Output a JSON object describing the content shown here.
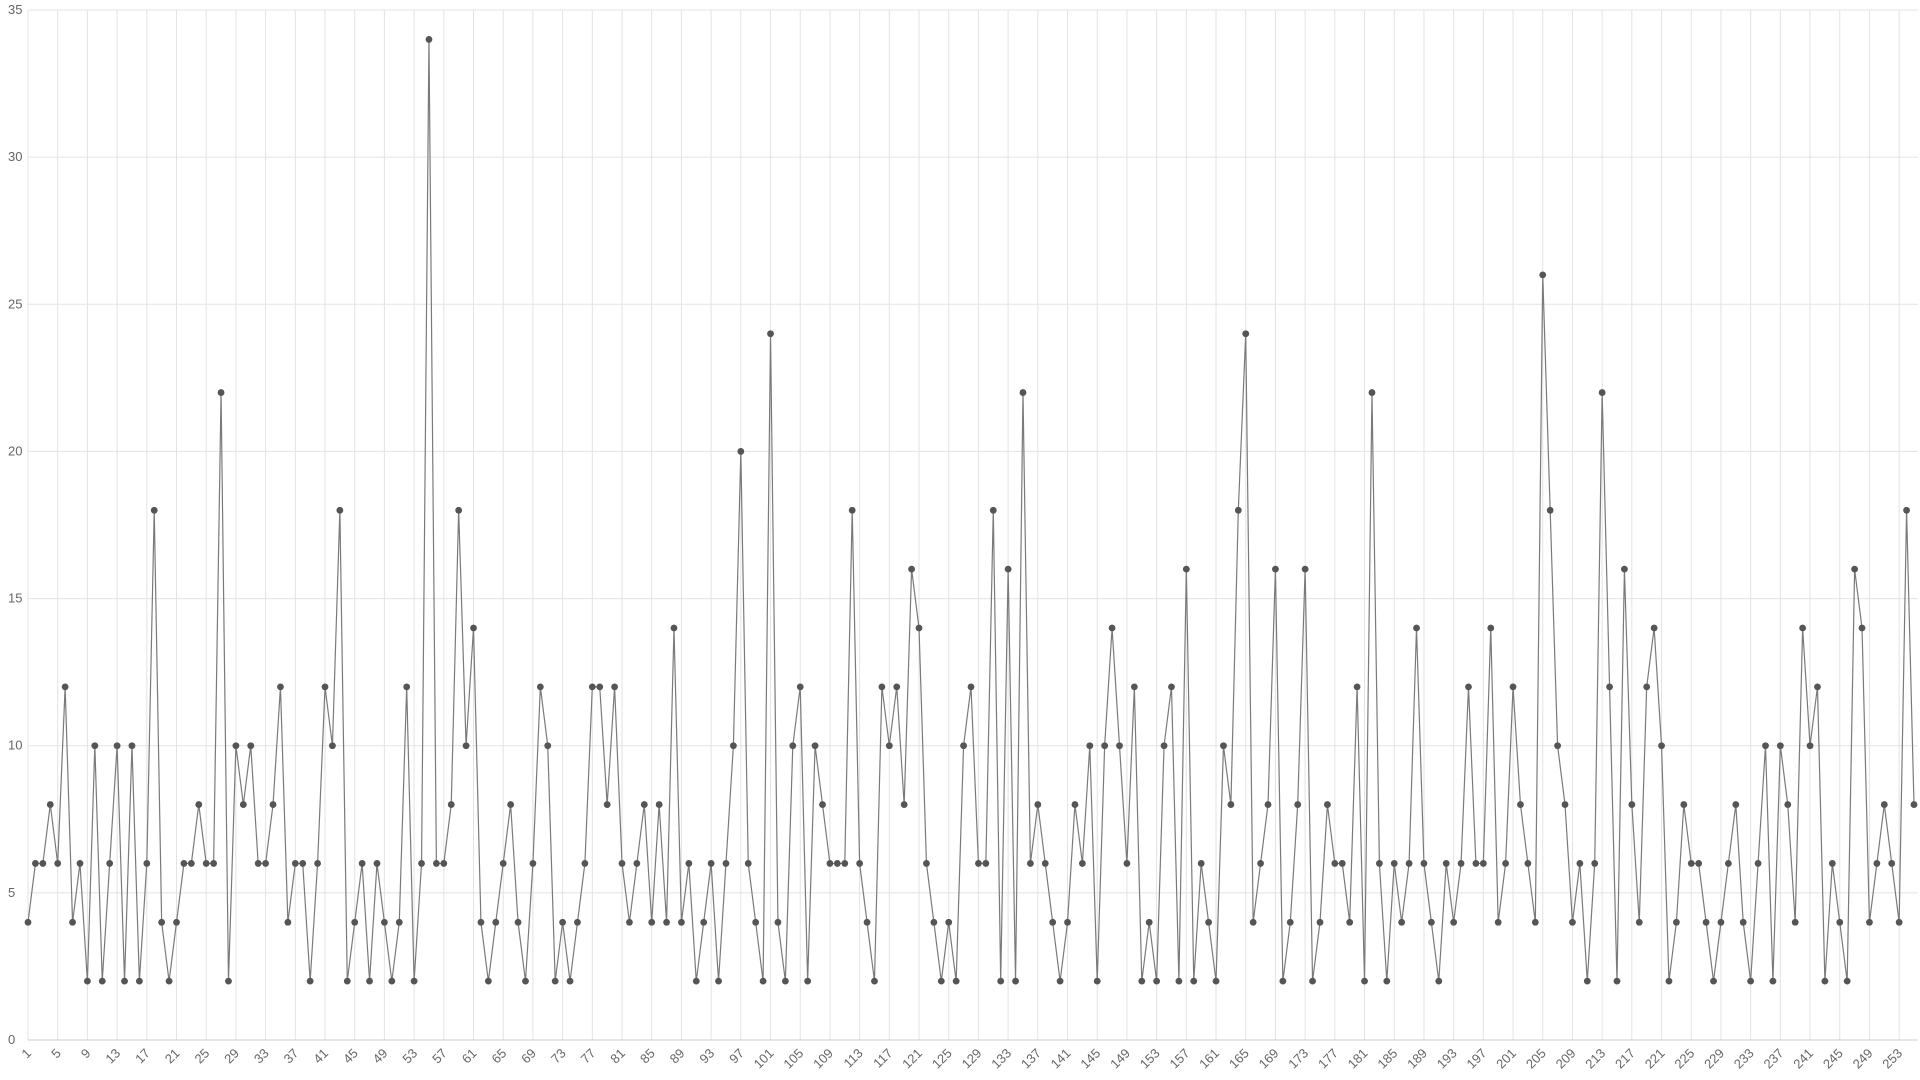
{
  "chart_data": {
    "type": "line",
    "categories": [
      1,
      null,
      null,
      null,
      5,
      null,
      null,
      null,
      9,
      null,
      null,
      null,
      13,
      null,
      null,
      null,
      17,
      null,
      null,
      null,
      21,
      null,
      null,
      null,
      25,
      null,
      null,
      null,
      29,
      null,
      null,
      null,
      33,
      null,
      null,
      null,
      37,
      null,
      null,
      null,
      41,
      null,
      null,
      null,
      45,
      null,
      null,
      null,
      49,
      null,
      null,
      null,
      53,
      null,
      null,
      null,
      57,
      null,
      null,
      null,
      61,
      null,
      null,
      null,
      65,
      null,
      null,
      null,
      69,
      null,
      null,
      null,
      73,
      null,
      null,
      null,
      77,
      null,
      null,
      null,
      81,
      null,
      null,
      null,
      85,
      null,
      null,
      null,
      89,
      null,
      null,
      null,
      93,
      null,
      null,
      null,
      97,
      null,
      null,
      null,
      101,
      null,
      null,
      null,
      105,
      null,
      null,
      null,
      109,
      null,
      null,
      null,
      113,
      null,
      null,
      null,
      117,
      null,
      null,
      null,
      121,
      null,
      null,
      null,
      125,
      null,
      null,
      null,
      129,
      null,
      null,
      null,
      133,
      null,
      null,
      null,
      137,
      null,
      null,
      null,
      141,
      null,
      null,
      null,
      145,
      null,
      null,
      null,
      149,
      null,
      null,
      null,
      153,
      null,
      null,
      null,
      157,
      null,
      null,
      null,
      161,
      null,
      null,
      null,
      165,
      null,
      null,
      null,
      169,
      null,
      null,
      null,
      173,
      null,
      null,
      null,
      177,
      null,
      null,
      null,
      181,
      null,
      null,
      null,
      185,
      null,
      null,
      null,
      189,
      null,
      null,
      null,
      193,
      null,
      null,
      null,
      197,
      null,
      null,
      null,
      201,
      null,
      null,
      null,
      205,
      null,
      null,
      null,
      209,
      null,
      null,
      null,
      213,
      null,
      null,
      null,
      217,
      null,
      null,
      null,
      221,
      null,
      null,
      null,
      225,
      null,
      null,
      null,
      229,
      null,
      null,
      null,
      233,
      null,
      null,
      null,
      237,
      null,
      null,
      null,
      241,
      null,
      null,
      null,
      245,
      null,
      null,
      null,
      249,
      null,
      null,
      null,
      253,
      null,
      null
    ],
    "series": [
      {
        "name": null,
        "color": "#555555",
        "line_color": "#7a7a7a",
        "values": [
          4,
          6,
          6,
          8,
          6,
          12,
          4,
          6,
          2,
          10,
          2,
          6,
          10,
          2,
          10,
          2,
          6,
          18,
          4,
          2,
          4,
          6,
          6,
          8,
          6,
          6,
          22,
          2,
          10,
          8,
          10,
          6,
          6,
          8,
          12,
          4,
          6,
          6,
          2,
          6,
          12,
          10,
          18,
          2,
          4,
          6,
          2,
          6,
          4,
          2,
          4,
          12,
          2,
          6,
          34,
          6,
          6,
          8,
          18,
          10,
          14,
          4,
          2,
          4,
          6,
          8,
          4,
          2,
          6,
          12,
          10,
          2,
          4,
          2,
          4,
          6,
          12,
          12,
          8,
          12,
          6,
          4,
          6,
          8,
          4,
          8,
          4,
          14,
          4,
          6,
          2,
          4,
          6,
          2,
          6,
          10,
          20,
          6,
          4,
          2,
          24,
          4,
          2,
          10,
          12,
          2,
          10,
          8,
          6,
          6,
          6,
          18,
          6,
          4,
          2,
          12,
          10,
          12,
          8,
          16,
          14,
          6,
          4,
          2,
          4,
          2,
          10,
          12,
          6,
          6,
          18,
          2,
          16,
          2,
          22,
          6,
          8,
          6,
          4,
          2,
          4,
          8,
          6,
          10,
          2,
          10,
          14,
          10,
          6,
          12,
          2,
          4,
          2,
          10,
          12,
          2,
          16,
          2,
          6,
          4,
          2,
          10,
          8,
          18,
          24,
          4,
          6,
          8,
          16,
          2,
          4,
          8,
          16,
          2,
          4,
          8,
          6,
          6,
          4,
          12,
          2,
          22,
          6,
          2,
          6,
          4,
          6,
          14,
          6,
          4,
          2,
          6,
          4,
          6,
          12,
          6,
          6,
          14,
          4,
          6,
          12,
          8,
          6,
          4,
          26,
          18,
          10,
          8,
          4,
          6,
          2,
          6,
          22,
          12,
          2,
          16,
          8,
          4,
          12,
          14,
          10,
          2,
          4,
          8,
          6,
          6,
          4,
          2,
          4,
          6,
          8,
          4,
          2,
          6,
          10,
          2,
          10,
          8,
          4,
          14,
          10,
          12,
          2,
          6,
          4,
          2,
          16,
          14,
          4,
          6,
          8,
          6,
          4,
          18,
          8
        ]
      }
    ],
    "ylim": [
      0,
      35
    ],
    "yticks": [
      0,
      5,
      10,
      15,
      20,
      25,
      30,
      35
    ],
    "grid": true
  }
}
